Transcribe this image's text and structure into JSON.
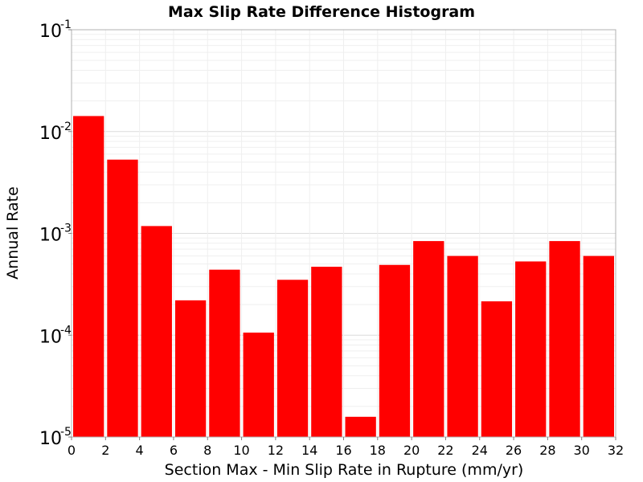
{
  "chart_data": {
    "type": "bar",
    "title": "Max Slip Rate Difference Histogram",
    "xlabel": "Section Max - Min Slip Rate in Rupture (mm/yr)",
    "ylabel": "Annual Rate",
    "xlim": [
      0,
      32
    ],
    "ylim": [
      1e-05,
      0.1
    ],
    "y_scale": "log",
    "bin_width": 2,
    "x_tick_labels": [
      "0",
      "2",
      "4",
      "6",
      "8",
      "10",
      "12",
      "14",
      "16",
      "18",
      "20",
      "22",
      "24",
      "26",
      "28",
      "30",
      "32"
    ],
    "x_ticks": [
      0,
      2,
      4,
      6,
      8,
      10,
      12,
      14,
      16,
      18,
      20,
      22,
      24,
      26,
      28,
      30,
      32
    ],
    "y_ticks": [
      {
        "value": 0.1,
        "base": "10",
        "exp": "-1"
      },
      {
        "value": 0.01,
        "base": "10",
        "exp": "-2"
      },
      {
        "value": 0.001,
        "base": "10",
        "exp": "-3"
      },
      {
        "value": 0.0001,
        "base": "10",
        "exp": "-4"
      },
      {
        "value": 1e-05,
        "base": "10",
        "exp": "-5"
      }
    ],
    "bins": [
      0,
      2,
      4,
      6,
      8,
      10,
      12,
      14,
      16,
      18,
      20,
      22,
      24,
      26,
      28,
      30
    ],
    "values": [
      0.0142,
      0.0053,
      0.00118,
      0.00022,
      0.00044,
      0.000106,
      0.00035,
      0.00047,
      1.58e-05,
      0.00049,
      0.00084,
      0.0006,
      0.000215,
      0.00053,
      0.00084,
      0.0006
    ],
    "bar_color": "#ff0000",
    "grid": true,
    "legend": "none"
  }
}
